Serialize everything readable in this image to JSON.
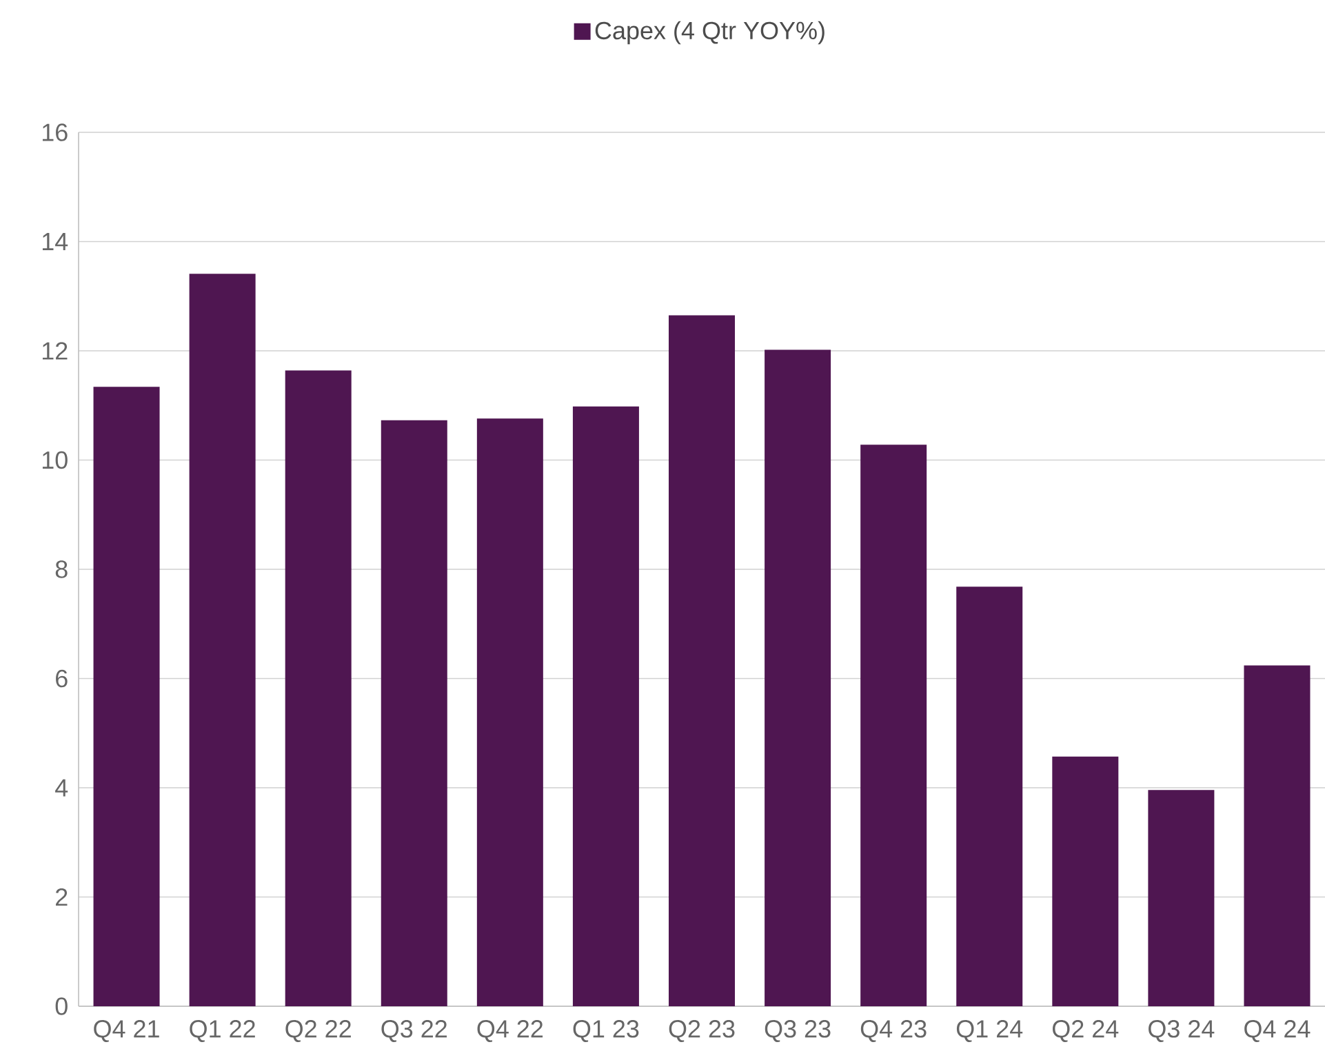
{
  "chart_data": {
    "type": "bar",
    "categories": [
      "Q4 21",
      "Q1 22",
      "Q2 22",
      "Q3 22",
      "Q4 22",
      "Q1 23",
      "Q2 23",
      "Q3 23",
      "Q4 23",
      "Q1 24",
      "Q2 24",
      "Q3 24",
      "Q4 24"
    ],
    "series": [
      {
        "name": "Capex (4 Qtr YOY%)",
        "color": "#4f1651",
        "values": [
          11.34,
          13.41,
          11.64,
          10.73,
          10.76,
          10.98,
          12.65,
          12.02,
          10.28,
          7.68,
          4.57,
          3.96,
          6.24
        ]
      }
    ],
    "ylim": [
      0,
      16
    ],
    "yticks": [
      0,
      2,
      4,
      6,
      8,
      10,
      12,
      14,
      16
    ],
    "grid": "y",
    "legend": "top"
  }
}
